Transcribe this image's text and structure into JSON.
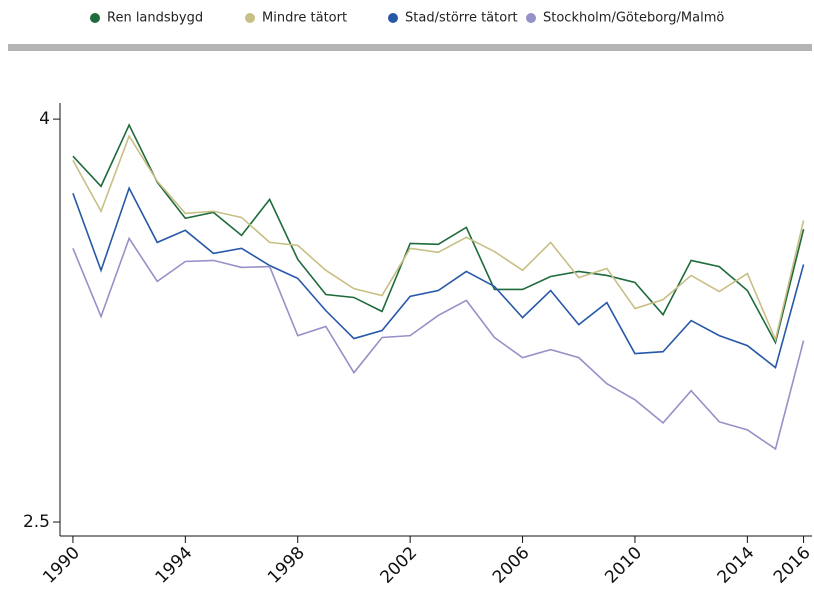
{
  "chart_data": {
    "type": "line",
    "x": [
      1990,
      1991,
      1992,
      1993,
      1994,
      1995,
      1996,
      1997,
      1998,
      1999,
      2000,
      2001,
      2002,
      2003,
      2004,
      2005,
      2006,
      2007,
      2008,
      2009,
      2010,
      2011,
      2012,
      2013,
      2014,
      2015,
      2016
    ],
    "series": [
      {
        "name": "Ren landsbygd",
        "color": "#1e6b3c",
        "values": [
          3.862,
          3.75,
          3.978,
          3.765,
          3.631,
          3.653,
          3.567,
          3.701,
          3.478,
          3.347,
          3.336,
          3.284,
          3.537,
          3.534,
          3.597,
          3.366,
          3.366,
          3.414,
          3.433,
          3.418,
          3.392,
          3.272,
          3.474,
          3.451,
          3.362,
          3.168,
          3.59
        ]
      },
      {
        "name": "Mindre tätort",
        "color": "#c8bf86",
        "values": [
          3.847,
          3.657,
          3.937,
          3.769,
          3.649,
          3.657,
          3.634,
          3.541,
          3.53,
          3.437,
          3.369,
          3.343,
          3.519,
          3.504,
          3.56,
          3.507,
          3.437,
          3.541,
          3.41,
          3.444,
          3.295,
          3.328,
          3.418,
          3.358,
          3.425,
          3.179,
          3.623
        ]
      },
      {
        "name": "Stad/större tätort",
        "color": "#2758a8",
        "values": [
          3.724,
          3.437,
          3.743,
          3.541,
          3.586,
          3.5,
          3.519,
          3.455,
          3.407,
          3.287,
          3.183,
          3.213,
          3.34,
          3.362,
          3.433,
          3.377,
          3.261,
          3.362,
          3.235,
          3.317,
          3.127,
          3.134,
          3.25,
          3.194,
          3.157,
          3.075,
          3.459
        ]
      },
      {
        "name": "Stockholm/Göteborg/Malmö",
        "color": "#9691c7",
        "values": [
          3.519,
          3.265,
          3.556,
          3.396,
          3.47,
          3.474,
          3.448,
          3.451,
          3.194,
          3.228,
          3.056,
          3.187,
          3.194,
          3.269,
          3.325,
          3.187,
          3.112,
          3.142,
          3.112,
          3.015,
          2.955,
          2.869,
          2.989,
          2.873,
          2.843,
          2.772,
          3.175
        ]
      }
    ],
    "xlim": [
      1989.54,
      2016.3
    ],
    "xticks": [
      1990,
      1994,
      1998,
      2002,
      2006,
      2010,
      2014,
      2016
    ],
    "ylim": [
      2.448,
      4.06
    ],
    "yticks": [
      2.5,
      4
    ]
  }
}
